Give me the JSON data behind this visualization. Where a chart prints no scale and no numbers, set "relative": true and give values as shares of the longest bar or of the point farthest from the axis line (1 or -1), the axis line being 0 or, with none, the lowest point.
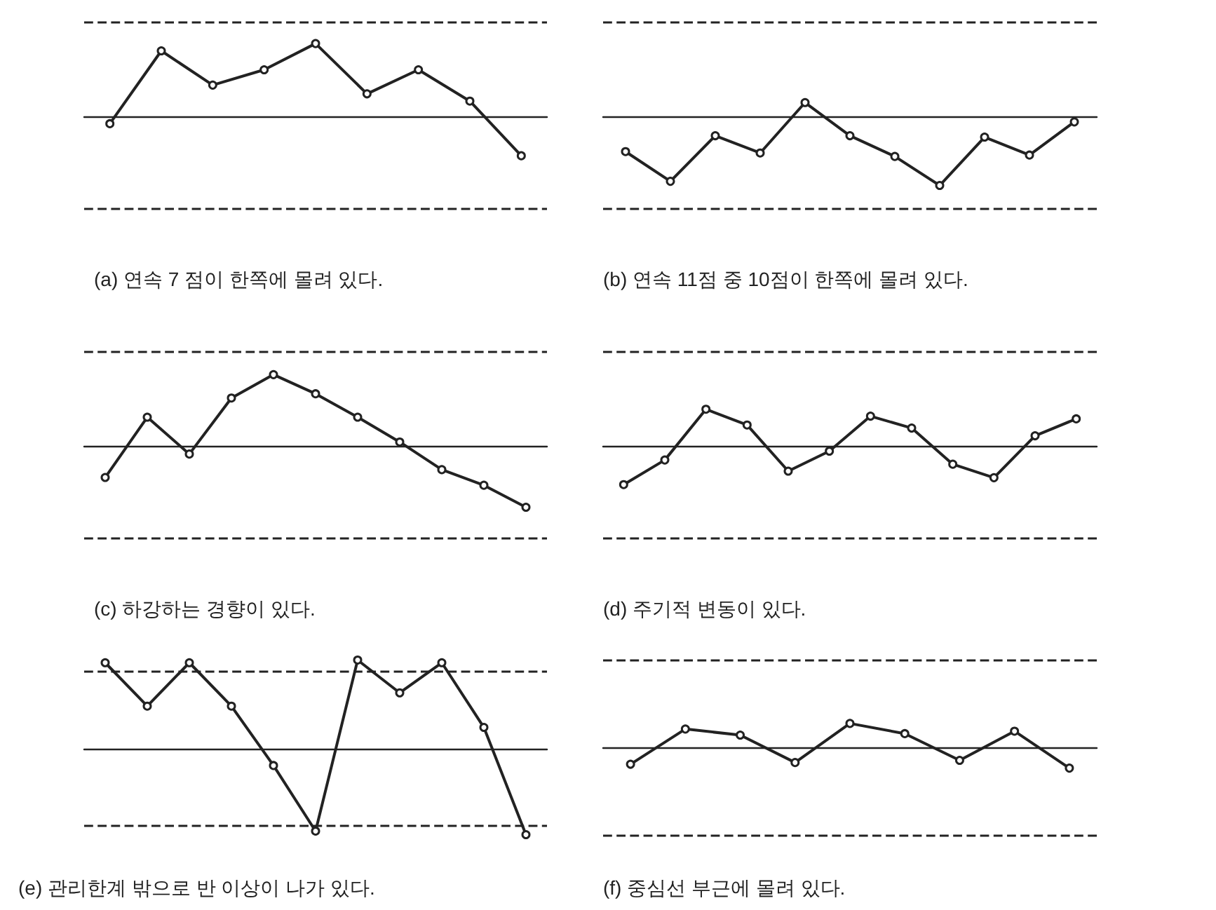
{
  "chart_data": [
    {
      "type": "line",
      "title": "(a) 연속 7 점이 한쪽에 몰려 있다.",
      "relative": true,
      "categories": [
        null,
        null,
        null,
        null,
        null,
        null,
        null,
        null,
        null
      ],
      "series": [
        {
          "color": "#222222",
          "values": [
            -0.1,
            0.9,
            0.43,
            0.64,
            1,
            0.31,
            0.64,
            0.21,
            -0.54
          ]
        }
      ],
      "ref_lines": [
        {
          "axis": "y",
          "value": 1.29,
          "line_style": "dashed"
        },
        {
          "axis": "y",
          "value": -1.27,
          "line_style": "dashed"
        }
      ],
      "marker": "circle",
      "line_style": "solid"
    },
    {
      "type": "line",
      "title": "(b) 연속 11점 중 10점이 한쪽에 몰려 있다.",
      "relative": true,
      "categories": [
        null,
        null,
        null,
        null,
        null,
        null,
        null,
        null,
        null,
        null,
        null
      ],
      "series": [
        {
          "color": "#222222",
          "values": [
            -0.51,
            -0.94,
            -0.28,
            -0.53,
            0.2,
            -0.28,
            -0.58,
            -1,
            -0.3,
            -0.56,
            -0.08
          ]
        }
      ],
      "ref_lines": [
        {
          "axis": "y",
          "value": 1.36,
          "line_style": "dashed"
        },
        {
          "axis": "y",
          "value": -1.34,
          "line_style": "dashed"
        }
      ],
      "marker": "circle",
      "line_style": "solid"
    },
    {
      "type": "line",
      "title": "(c) 하강하는 경향이 있다.",
      "relative": true,
      "categories": [
        null,
        null,
        null,
        null,
        null,
        null,
        null,
        null,
        null,
        null,
        null
      ],
      "series": [
        {
          "color": "#222222",
          "values": [
            -0.45,
            0.4,
            -0.12,
            0.67,
            1,
            0.73,
            0.4,
            0.05,
            -0.34,
            -0.56,
            -0.87
          ]
        }
      ],
      "ref_lines": [
        {
          "axis": "y",
          "value": 1.32,
          "line_style": "dashed"
        },
        {
          "axis": "y",
          "value": -1.31,
          "line_style": "dashed"
        }
      ],
      "marker": "circle",
      "line_style": "solid"
    },
    {
      "type": "line",
      "title": "(d) 주기적 변동이 있다.",
      "relative": true,
      "categories": [
        null,
        null,
        null,
        null,
        null,
        null,
        null,
        null,
        null,
        null,
        null,
        null
      ],
      "series": [
        {
          "color": "#222222",
          "values": [
            -1,
            -0.36,
            0.96,
            0.55,
            -0.65,
            -0.13,
            0.78,
            0.47,
            -0.47,
            -0.82,
            0.27,
            0.71
          ]
        }
      ],
      "ref_lines": [
        {
          "axis": "y",
          "value": 2.45,
          "line_style": "dashed"
        },
        {
          "axis": "y",
          "value": -2.4,
          "line_style": "dashed"
        }
      ],
      "marker": "circle",
      "line_style": "solid"
    },
    {
      "type": "line",
      "title": "(e) 관리한계 밖으로 반 이상이 나가 있다.",
      "relative": true,
      "categories": [
        null,
        null,
        null,
        null,
        null,
        null,
        null,
        null,
        null,
        null,
        null
      ],
      "series": [
        {
          "color": "#222222",
          "values": [
            0.97,
            0.48,
            0.97,
            0.48,
            -0.19,
            -0.93,
            1,
            0.63,
            0.97,
            0.24,
            -0.97
          ]
        }
      ],
      "ref_lines": [
        {
          "axis": "y",
          "value": 0.88,
          "line_style": "dashed"
        },
        {
          "axis": "y",
          "value": -0.87,
          "line_style": "dashed"
        }
      ],
      "marker": "circle",
      "line_style": "solid"
    },
    {
      "type": "line",
      "title": "(f) 중심선 부근에 몰려 있다.",
      "relative": true,
      "categories": [
        null,
        null,
        null,
        null,
        null,
        null,
        null,
        null,
        null
      ],
      "series": [
        {
          "color": "#222222",
          "values": [
            -0.68,
            0.77,
            0.52,
            -0.61,
            1,
            0.58,
            -0.52,
            0.68,
            -0.84
          ]
        }
      ],
      "ref_lines": [
        {
          "axis": "y",
          "value": 3.61,
          "line_style": "dashed"
        },
        {
          "axis": "y",
          "value": -3.58,
          "line_style": "dashed"
        }
      ],
      "marker": "circle",
      "line_style": "solid"
    }
  ]
}
